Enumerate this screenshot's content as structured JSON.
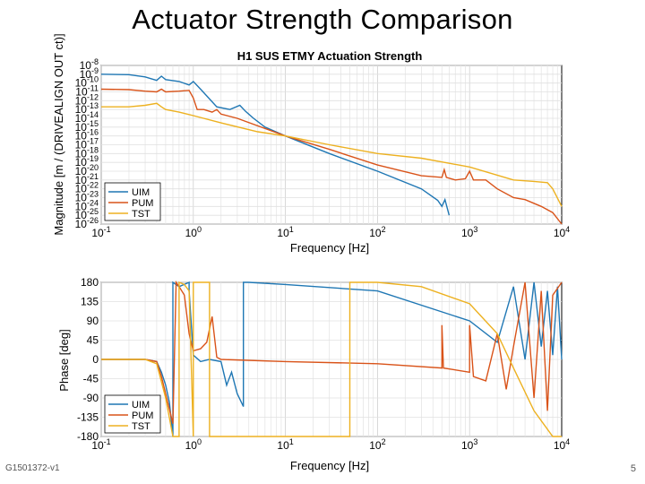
{
  "slide": {
    "title": "Actuator Strength Comparison",
    "footer_id": "G1501372-v1",
    "page_number": "5"
  },
  "chart_data": [
    {
      "type": "line",
      "title": "H1 SUS ETMY Actuation Strength",
      "xlabel": "Frequency [Hz]",
      "ylabel": "Magnitude [m / (DRIVEALIGN OUT ct)]",
      "xscale": "log",
      "yscale": "log",
      "xlim": [
        0.1,
        10000
      ],
      "ylim": [
        1e-26,
        1e-08
      ],
      "grid": true,
      "legend_position": "bottom-left",
      "x_tick_labels": [
        "10-1",
        "100",
        "101",
        "102",
        "103",
        "104"
      ],
      "y_tick_labels": [
        "10-8",
        "10-9",
        "10-10",
        "10-11",
        "10-12",
        "10-13",
        "10-14",
        "10-15",
        "10-16",
        "10-17",
        "10-18",
        "10-19",
        "10-20",
        "10-21",
        "10-22",
        "10-23",
        "10-24",
        "10-25",
        "10-26"
      ],
      "series": [
        {
          "name": "UIM",
          "color": "#1f77b4",
          "x": [
            0.1,
            0.2,
            0.3,
            0.4,
            0.45,
            0.5,
            0.7,
            0.9,
            1.0,
            1.2,
            1.8,
            2.5,
            3.2,
            3.7,
            4.5,
            6,
            10,
            30,
            100,
            300,
            450,
            500,
            540,
            600
          ],
          "y": [
            1e-09,
            9e-10,
            5e-10,
            2e-10,
            6e-10,
            2.5e-10,
            1.5e-10,
            6e-11,
            1.5e-10,
            2e-11,
            2e-13,
            1e-13,
            3e-13,
            6e-14,
            1e-14,
            1e-15,
            1e-16,
            1e-18,
            1e-20,
            1e-22,
            5e-24,
            1e-24,
            6e-24,
            1e-25
          ]
        },
        {
          "name": "PUM",
          "color": "#d95319",
          "x": [
            0.1,
            0.2,
            0.3,
            0.4,
            0.45,
            0.5,
            0.7,
            0.9,
            1.0,
            1.1,
            1.3,
            1.6,
            1.8,
            2.0,
            3,
            10,
            30,
            100,
            300,
            500,
            530,
            560,
            700,
            900,
            1000,
            1100,
            1500,
            2000,
            3000,
            4000,
            6000,
            8000,
            10000
          ],
          "y": [
            2e-11,
            1.8e-11,
            1.2e-11,
            1e-11,
            2e-11,
            1e-11,
            1.2e-11,
            1.5e-11,
            2e-12,
            1e-13,
            1e-13,
            5e-14,
            1e-13,
            3e-14,
            1e-14,
            1e-16,
            3e-18,
            5e-20,
            3e-21,
            2e-21,
            1.5e-20,
            2e-21,
            1e-21,
            1.4e-21,
            1e-20,
            1e-21,
            1e-21,
            1e-22,
            1e-23,
            6e-24,
            1e-24,
            2e-25,
            1e-26
          ]
        },
        {
          "name": "TST",
          "color": "#edb120",
          "x": [
            0.1,
            0.2,
            0.3,
            0.4,
            0.45,
            0.5,
            0.7,
            1.0,
            2,
            5,
            10,
            30,
            100,
            300,
            1000,
            3000,
            5000,
            7000,
            8000,
            10000
          ],
          "y": [
            2e-13,
            2e-13,
            3e-13,
            5e-13,
            2e-13,
            1e-13,
            5e-14,
            2e-14,
            3e-15,
            3e-16,
            1e-16,
            1e-17,
            1e-18,
            3e-19,
            3e-20,
            1e-21,
            7e-22,
            5e-22,
            1e-22,
            1e-24
          ]
        }
      ]
    },
    {
      "type": "line",
      "title": "",
      "xlabel": "Frequency [Hz]",
      "ylabel": "Phase [deg]",
      "xscale": "log",
      "xlim": [
        0.1,
        10000
      ],
      "ylim": [
        -180,
        180
      ],
      "grid": true,
      "legend_position": "bottom-left",
      "x_tick_labels": [
        "10-1",
        "100",
        "101",
        "102",
        "103",
        "104"
      ],
      "y_tick_labels": [
        "180",
        "135",
        "90",
        "45",
        "0",
        "-45",
        "-90",
        "-135",
        "-180"
      ],
      "series": [
        {
          "name": "UIM",
          "color": "#1f77b4",
          "x": [
            0.1,
            0.3,
            0.4,
            0.45,
            0.5,
            0.55,
            0.6,
            0.6,
            0.7,
            0.9,
            0.9,
            1.0,
            1.2,
            1.5,
            2.0,
            2.3,
            2.6,
            3.0,
            3.5,
            3.5,
            4.0,
            10,
            100,
            1000,
            2000,
            3000,
            4000,
            5000,
            6000,
            7000,
            8000,
            9000,
            10000
          ],
          "y": [
            0,
            0,
            -5,
            -30,
            -60,
            -100,
            -180,
            180,
            170,
            180,
            160,
            10,
            -5,
            0,
            -5,
            -60,
            -30,
            -80,
            -110,
            180,
            180,
            175,
            160,
            90,
            40,
            170,
            0,
            180,
            30,
            160,
            10,
            170,
            0
          ]
        },
        {
          "name": "PUM",
          "color": "#d95319",
          "x": [
            0.1,
            0.3,
            0.4,
            0.45,
            0.5,
            0.6,
            0.65,
            0.7,
            0.8,
            0.9,
            1.0,
            1.2,
            1.4,
            1.6,
            1.8,
            2.0,
            10,
            100,
            500,
            500,
            520,
            1000,
            1000,
            1100,
            1500,
            2000,
            2500,
            3000,
            4000,
            5000,
            6000,
            7000,
            8000,
            10000
          ],
          "y": [
            0,
            0,
            -5,
            -40,
            -80,
            -150,
            180,
            170,
            150,
            60,
            20,
            25,
            40,
            100,
            5,
            0,
            -5,
            -10,
            -20,
            80,
            -20,
            -30,
            80,
            -40,
            -50,
            60,
            -70,
            30,
            180,
            -90,
            160,
            -120,
            150,
            180
          ]
        },
        {
          "name": "TST",
          "color": "#edb120",
          "x": [
            0.1,
            0.3,
            0.4,
            0.5,
            0.6,
            0.7,
            0.7,
            0.8,
            0.9,
            1.0,
            1.0,
            1.2,
            1.5,
            1.5,
            3.0,
            5.0,
            50,
            50,
            100,
            300,
            1000,
            2000,
            3000,
            5000,
            8000,
            10000
          ],
          "y": [
            0,
            0,
            -10,
            -90,
            -180,
            -180,
            180,
            175,
            160,
            -180,
            180,
            180,
            180,
            -180,
            -180,
            -180,
            -180,
            180,
            180,
            170,
            130,
            60,
            -20,
            -120,
            -180,
            -180
          ]
        }
      ]
    }
  ]
}
